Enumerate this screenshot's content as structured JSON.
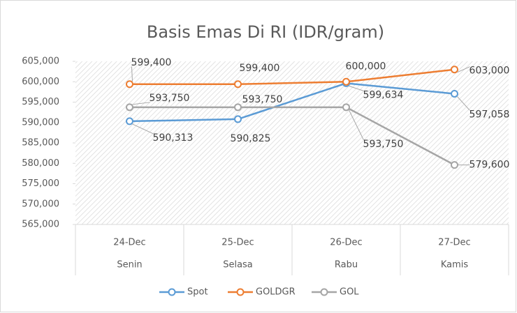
{
  "chart_data": {
    "type": "line",
    "title": "Basis Emas Di RI (IDR/gram)",
    "categories": [
      "24-Dec",
      "25-Dec",
      "26-Dec",
      "27-Dec"
    ],
    "category_groups": [
      "Senin",
      "Selasa",
      "Rabu",
      "Kamis"
    ],
    "series": [
      {
        "name": "Spot",
        "color": "#5b9bd5",
        "values": [
          590313,
          590825,
          599634,
          597058
        ],
        "value_labels": [
          "590,313",
          "590,825",
          "599,634",
          "597,058"
        ]
      },
      {
        "name": "GOLDGR",
        "color": "#ed7d31",
        "values": [
          599400,
          599400,
          600000,
          603000
        ],
        "value_labels": [
          "599,400",
          "599,400",
          "600,000",
          "603,000"
        ]
      },
      {
        "name": "GOL",
        "color": "#a5a5a5",
        "values": [
          593750,
          593750,
          593750,
          579600
        ],
        "value_labels": [
          "593,750",
          "593,750",
          "593,750",
          "579,600"
        ]
      }
    ],
    "ylim": [
      565000,
      605000
    ],
    "yticks": [
      {
        "value": 565000,
        "label": "565,000"
      },
      {
        "value": 570000,
        "label": "570,000"
      },
      {
        "value": 575000,
        "label": "575,000"
      },
      {
        "value": 580000,
        "label": "580,000"
      },
      {
        "value": 585000,
        "label": "585,000"
      },
      {
        "value": 590000,
        "label": "590,000"
      },
      {
        "value": 595000,
        "label": "595,000"
      },
      {
        "value": 600000,
        "label": "600,000"
      },
      {
        "value": 605000,
        "label": "605,000"
      }
    ],
    "legend": "bottom"
  }
}
